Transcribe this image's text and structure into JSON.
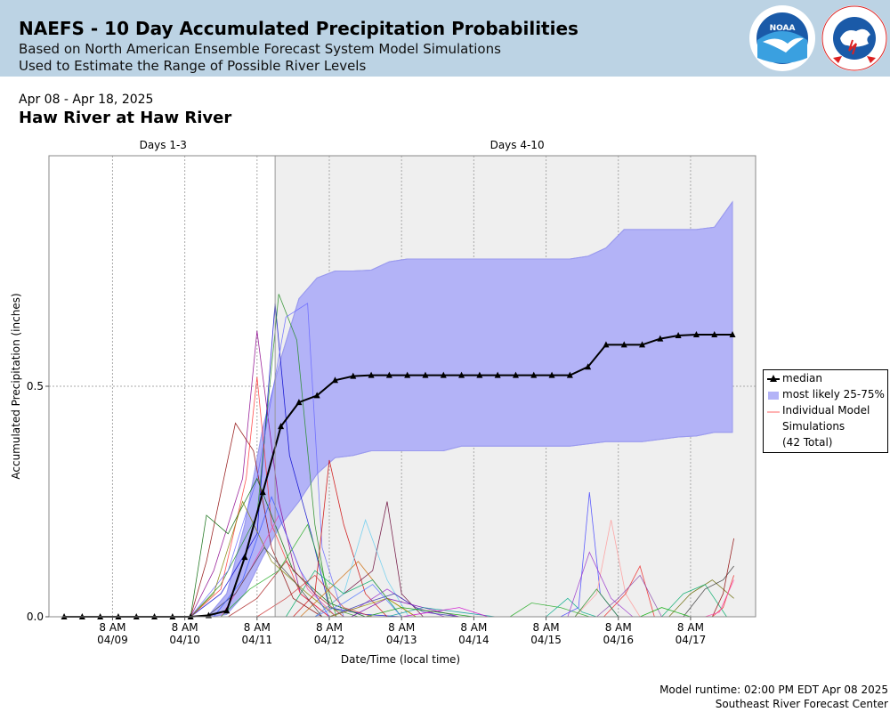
{
  "header": {
    "title": "NAEFS - 10 Day Accumulated Precipitation Probabilities",
    "subtitle1": "Based on North American Ensemble Forecast System Model Simulations",
    "subtitle2": "Used to Estimate the Range of Possible River Levels",
    "noaa_logo_text": "NOAA",
    "nws_logo_text": "NATIONAL WEATHER SERVICE"
  },
  "date_range": "Apr 08 - Apr 18, 2025",
  "station": "Haw River at Haw River",
  "footer": {
    "runtime": "Model runtime: 02:00 PM EDT Apr 08 2025",
    "center": "Southeast River Forecast Center"
  },
  "legend": {
    "median": "median",
    "band": "most likely 25-75%",
    "members_line1": "Individual Model",
    "members_line2": "Simulations",
    "members_line3": "(42 Total)"
  },
  "colors": {
    "header_bg": "#bcd3e4",
    "band_fill": "#b3b3f7",
    "band_edge": "#9a9aee",
    "median": "#000000",
    "shade": "#efefef"
  },
  "chart_data": {
    "type": "line",
    "xlabel": "Date/Time (local time)",
    "ylabel": "Accumulated Precipitation (inches)",
    "ylim": [
      0,
      1.0
    ],
    "y_ticks": [
      "0.0",
      "0.5"
    ],
    "y_tick_values": [
      0,
      0.5
    ],
    "x_ticks": [
      {
        "day": 9,
        "time": "8 AM",
        "date": "04/09"
      },
      {
        "day": 10,
        "time": "8 AM",
        "date": "04/10"
      },
      {
        "day": 11,
        "time": "8 AM",
        "date": "04/11"
      },
      {
        "day": 12,
        "time": "8 AM",
        "date": "04/12"
      },
      {
        "day": 13,
        "time": "8 AM",
        "date": "04/13"
      },
      {
        "day": 14,
        "time": "8 AM",
        "date": "04/14"
      },
      {
        "day": 15,
        "time": "8 AM",
        "date": "04/15"
      },
      {
        "day": 16,
        "time": "8 AM",
        "date": "04/16"
      },
      {
        "day": 17,
        "time": "8 AM",
        "date": "04/17"
      }
    ],
    "x_range_days": [
      8.12,
      17.9
    ],
    "period_boundary_day": 11.25,
    "periods": [
      {
        "label": "Days 1-3",
        "center_day": 9.7
      },
      {
        "label": "Days 4-10",
        "center_day": 14.6
      }
    ],
    "median": {
      "name": "median",
      "x": [
        8.33,
        8.58,
        8.83,
        9.08,
        9.33,
        9.58,
        9.83,
        10.08,
        10.33,
        10.58,
        10.83,
        11.08,
        11.33,
        11.58,
        11.83,
        12.08,
        12.33,
        12.58,
        12.83,
        13.08,
        13.33,
        13.58,
        13.83,
        14.08,
        14.33,
        14.58,
        14.83,
        15.08,
        15.33,
        15.58,
        15.83,
        16.08,
        16.33,
        16.58,
        16.83,
        17.08,
        17.33,
        17.58
      ],
      "y": [
        0,
        0,
        0,
        0,
        0,
        0,
        0,
        0,
        0.003,
        0.013,
        0.129,
        0.27,
        0.413,
        0.465,
        0.48,
        0.513,
        0.522,
        0.524,
        0.524,
        0.524,
        0.524,
        0.524,
        0.524,
        0.524,
        0.524,
        0.524,
        0.524,
        0.524,
        0.524,
        0.542,
        0.59,
        0.59,
        0.59,
        0.603,
        0.61,
        0.612,
        0.612,
        0.612
      ]
    },
    "band": {
      "name": "most likely 25-75%",
      "x": [
        10.08,
        10.33,
        10.58,
        10.83,
        11.08,
        11.33,
        11.58,
        11.83,
        12.08,
        12.33,
        12.58,
        12.83,
        13.08,
        13.33,
        13.58,
        13.83,
        14.08,
        14.33,
        14.58,
        14.83,
        15.08,
        15.33,
        15.58,
        15.83,
        16.08,
        16.33,
        16.58,
        16.83,
        17.08,
        17.33,
        17.58
      ],
      "low": [
        0,
        0,
        0.005,
        0.05,
        0.13,
        0.2,
        0.25,
        0.31,
        0.345,
        0.35,
        0.36,
        0.36,
        0.36,
        0.36,
        0.36,
        0.37,
        0.37,
        0.37,
        0.37,
        0.37,
        0.37,
        0.37,
        0.375,
        0.38,
        0.38,
        0.38,
        0.385,
        0.39,
        0.392,
        0.4,
        0.4
      ],
      "high": [
        0,
        0.003,
        0.05,
        0.2,
        0.41,
        0.56,
        0.69,
        0.735,
        0.75,
        0.75,
        0.752,
        0.77,
        0.776,
        0.776,
        0.776,
        0.776,
        0.776,
        0.776,
        0.776,
        0.776,
        0.776,
        0.776,
        0.782,
        0.8,
        0.84,
        0.84,
        0.84,
        0.84,
        0.84,
        0.845,
        0.9
      ]
    },
    "members_count": 42,
    "members": [
      {
        "color": "#0000cc",
        "x": [
          10.08,
          10.5,
          11.0,
          11.25,
          11.45,
          11.75,
          12.0,
          12.5,
          13.0
        ],
        "y": [
          0,
          0.05,
          0.18,
          0.68,
          0.35,
          0.18,
          0.02,
          0.005,
          0
        ]
      },
      {
        "color": "#228B22",
        "x": [
          10.08,
          10.5,
          11.0,
          11.3,
          11.55,
          11.8,
          12.0,
          12.4
        ],
        "y": [
          0,
          0.07,
          0.22,
          0.7,
          0.6,
          0.2,
          0.02,
          0
        ]
      },
      {
        "color": "#8B008B",
        "x": [
          10.08,
          10.4,
          10.8,
          11.0,
          11.3,
          11.6,
          12.0
        ],
        "y": [
          0,
          0.1,
          0.3,
          0.62,
          0.25,
          0.05,
          0
        ]
      },
      {
        "color": "#8B0000",
        "x": [
          10.08,
          10.3,
          10.7,
          10.95,
          11.2,
          11.5,
          11.9
        ],
        "y": [
          0,
          0.12,
          0.42,
          0.36,
          0.15,
          0.04,
          0
        ]
      },
      {
        "color": "#ff3333",
        "x": [
          10.08,
          10.5,
          10.85,
          11.0,
          11.2,
          11.6,
          12.0
        ],
        "y": [
          0,
          0.06,
          0.3,
          0.52,
          0.2,
          0.05,
          0
        ]
      },
      {
        "color": "#6666ff",
        "x": [
          10.08,
          10.6,
          11.0,
          11.4,
          11.7,
          11.9,
          12.2
        ],
        "y": [
          0,
          0.1,
          0.3,
          0.65,
          0.68,
          0.15,
          0
        ]
      },
      {
        "color": "#006400",
        "x": [
          10.08,
          10.3,
          10.6,
          11.0,
          11.5,
          12.0,
          12.5
        ],
        "y": [
          0,
          0.22,
          0.18,
          0.3,
          0.1,
          0.03,
          0
        ]
      },
      {
        "color": "#808000",
        "x": [
          10.08,
          10.4,
          10.8,
          11.2,
          11.7,
          12.1
        ],
        "y": [
          0,
          0.05,
          0.25,
          0.12,
          0.05,
          0
        ]
      },
      {
        "color": "#cc0000",
        "x": [
          11.5,
          11.8,
          12.0,
          12.2,
          12.5,
          12.8
        ],
        "y": [
          0,
          0.05,
          0.34,
          0.2,
          0.05,
          0
        ]
      },
      {
        "color": "#660033",
        "x": [
          11.8,
          12.2,
          12.6,
          12.8,
          13.0,
          13.3
        ],
        "y": [
          0,
          0.05,
          0.1,
          0.25,
          0.05,
          0
        ]
      },
      {
        "color": "#66ccee",
        "x": [
          11.8,
          12.2,
          12.5,
          12.8,
          13.1
        ],
        "y": [
          0,
          0.05,
          0.21,
          0.08,
          0
        ]
      },
      {
        "color": "#9933cc",
        "x": [
          12.0,
          12.4,
          12.8,
          13.2,
          13.6
        ],
        "y": [
          0,
          0.02,
          0.06,
          0.02,
          0
        ]
      },
      {
        "color": "#3333aa",
        "x": [
          12.0,
          12.5,
          12.9,
          13.3,
          13.8
        ],
        "y": [
          0,
          0.03,
          0.05,
          0.01,
          0
        ]
      },
      {
        "color": "#cc6600",
        "x": [
          11.6,
          12.0,
          12.4,
          12.8,
          13.2
        ],
        "y": [
          0,
          0.06,
          0.12,
          0.04,
          0
        ]
      },
      {
        "color": "#00aa66",
        "x": [
          11.4,
          11.8,
          12.2,
          12.6,
          13.0
        ],
        "y": [
          0,
          0.1,
          0.05,
          0.08,
          0
        ]
      },
      {
        "color": "#ee44aa",
        "x": [
          10.5,
          10.9,
          11.3,
          11.7,
          12.1
        ],
        "y": [
          0,
          0.1,
          0.22,
          0.06,
          0
        ]
      },
      {
        "color": "#444444",
        "x": [
          10.3,
          10.7,
          11.1,
          11.5,
          11.9
        ],
        "y": [
          0,
          0.05,
          0.15,
          0.08,
          0
        ]
      },
      {
        "color": "#3355ff",
        "x": [
          10.4,
          10.8,
          11.2,
          11.6,
          12.0
        ],
        "y": [
          0,
          0.08,
          0.26,
          0.1,
          0
        ]
      },
      {
        "color": "#aa2222",
        "x": [
          10.6,
          11.0,
          11.4,
          11.8,
          12.2
        ],
        "y": [
          0,
          0.04,
          0.12,
          0.05,
          0
        ]
      },
      {
        "color": "#22aa22",
        "x": [
          10.5,
          10.9,
          11.3,
          11.7,
          12.1
        ],
        "y": [
          0,
          0.06,
          0.1,
          0.2,
          0
        ]
      },
      {
        "color": "#7700aa",
        "x": [
          12.3,
          12.8,
          13.3,
          13.8
        ],
        "y": [
          0,
          0.04,
          0.02,
          0
        ]
      },
      {
        "color": "#009999",
        "x": [
          12.8,
          13.3,
          13.8,
          14.3
        ],
        "y": [
          0,
          0.02,
          0.01,
          0
        ]
      },
      {
        "color": "#22aa22",
        "x": [
          14.5,
          14.8,
          15.2,
          15.6
        ],
        "y": [
          0,
          0.03,
          0.02,
          0
        ]
      },
      {
        "color": "#00aa88",
        "x": [
          15.0,
          15.3,
          15.5,
          15.7
        ],
        "y": [
          0,
          0.04,
          0.01,
          0
        ]
      },
      {
        "color": "#4444ff",
        "x": [
          15.2,
          15.45,
          15.6,
          15.75,
          16.0
        ],
        "y": [
          0,
          0.02,
          0.27,
          0.05,
          0
        ]
      },
      {
        "color": "#ff9999",
        "x": [
          15.4,
          15.7,
          15.9,
          16.1,
          16.3
        ],
        "y": [
          0,
          0.05,
          0.21,
          0.05,
          0
        ]
      },
      {
        "color": "#9933cc",
        "x": [
          15.3,
          15.6,
          15.9,
          16.2
        ],
        "y": [
          0,
          0.14,
          0.04,
          0
        ]
      },
      {
        "color": "#ee2222",
        "x": [
          15.8,
          16.1,
          16.3,
          16.5
        ],
        "y": [
          0,
          0.05,
          0.11,
          0
        ]
      },
      {
        "color": "#8844aa",
        "x": [
          15.7,
          16.0,
          16.3,
          16.6
        ],
        "y": [
          0,
          0.04,
          0.09,
          0
        ]
      },
      {
        "color": "#228B22",
        "x": [
          15.4,
          15.7,
          16.0
        ],
        "y": [
          0,
          0.06,
          0
        ]
      },
      {
        "color": "#666600",
        "x": [
          16.7,
          17.0,
          17.3,
          17.6
        ],
        "y": [
          0,
          0.05,
          0.08,
          0.04
        ]
      },
      {
        "color": "#00aa66",
        "x": [
          16.6,
          16.9,
          17.2,
          17.5
        ],
        "y": [
          0,
          0.05,
          0.07,
          0
        ]
      },
      {
        "color": "#333333",
        "x": [
          16.9,
          17.2,
          17.45,
          17.6
        ],
        "y": [
          0,
          0.06,
          0.08,
          0.11
        ]
      },
      {
        "color": "#8B0000",
        "x": [
          17.3,
          17.45,
          17.6
        ],
        "y": [
          0,
          0.05,
          0.17
        ]
      },
      {
        "color": "#ee2222",
        "x": [
          17.3,
          17.45,
          17.6
        ],
        "y": [
          0,
          0.02,
          0.09
        ]
      },
      {
        "color": "#ff44aa",
        "x": [
          17.2,
          17.4,
          17.6
        ],
        "y": [
          0,
          0.01,
          0.08
        ]
      },
      {
        "color": "#00aa00",
        "x": [
          16.3,
          16.6,
          17.0
        ],
        "y": [
          0,
          0.02,
          0
        ]
      },
      {
        "color": "#999900",
        "x": [
          12.0,
          12.4,
          12.8,
          13.2
        ],
        "y": [
          0,
          0.02,
          0.04,
          0
        ]
      },
      {
        "color": "#cc00cc",
        "x": [
          13.0,
          13.4,
          13.8,
          14.2
        ],
        "y": [
          0,
          0.01,
          0.02,
          0
        ]
      },
      {
        "color": "#cc3333",
        "x": [
          11.0,
          11.4,
          11.8,
          12.2,
          12.6
        ],
        "y": [
          0,
          0.04,
          0.09,
          0.02,
          0
        ]
      },
      {
        "color": "#5577ff",
        "x": [
          11.8,
          12.2,
          12.6,
          13.0
        ],
        "y": [
          0,
          0.03,
          0.07,
          0
        ]
      },
      {
        "color": "#009900",
        "x": [
          12.5,
          13.0,
          13.5,
          14.0
        ],
        "y": [
          0,
          0.02,
          0.01,
          0
        ]
      }
    ]
  }
}
